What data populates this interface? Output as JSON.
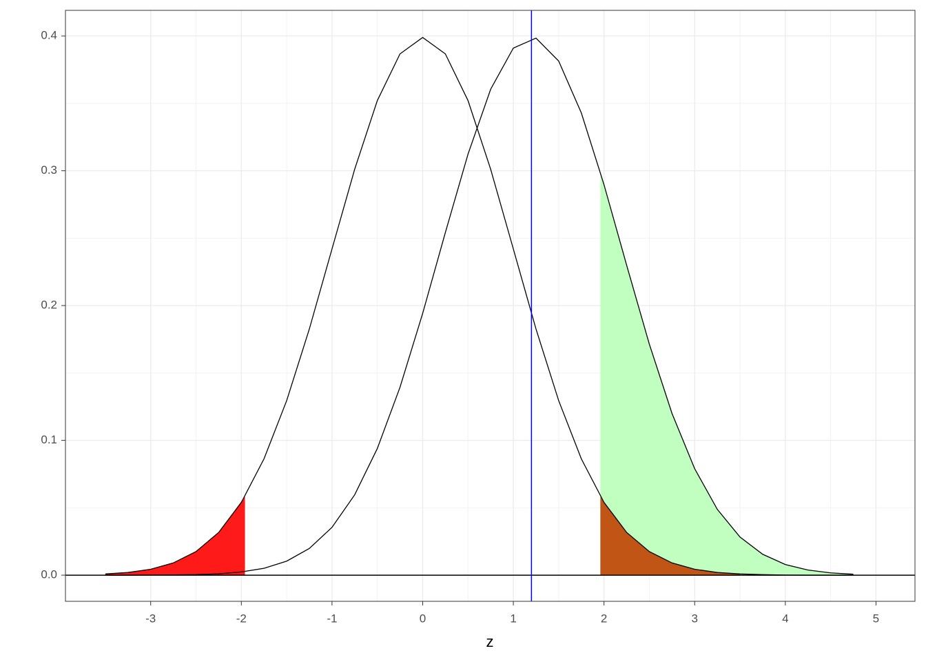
{
  "chart_data": {
    "type": "line",
    "xlabel": "z",
    "xlim": [
      -3.94,
      5.43
    ],
    "ylim": [
      -0.0194,
      0.419
    ],
    "xticks": [
      -3,
      -2,
      -1,
      0,
      1,
      2,
      3,
      4,
      5
    ],
    "yticks": [
      {
        "value": 0,
        "label": "0.0"
      },
      0.1,
      0.2,
      0.3,
      0.4
    ],
    "grid": true,
    "hline": 0,
    "vline": 1.2,
    "vline_color": "#0000ff",
    "series": [
      {
        "kind": "area",
        "color": "#c0ffc0",
        "x": [
          1.96,
          2,
          2.25,
          2.5,
          2.75,
          3,
          3.25,
          3.5,
          3.75,
          4,
          4.25,
          4.5,
          4.75
        ],
        "values": [
          0.2989,
          0.2897,
          0.2299,
          0.1714,
          0.12,
          0.079,
          0.0488,
          0.0283,
          0.0155,
          0.0079,
          0.0038,
          0.0017,
          0.0007
        ]
      },
      {
        "kind": "area",
        "color": "#c05515",
        "x": [
          1.96,
          2,
          2.25,
          2.5,
          2.75,
          3,
          3.25,
          3.5
        ],
        "values": [
          0.0584,
          0.054,
          0.0317,
          0.0175,
          0.0091,
          0.0044,
          0.002,
          0.0009
        ]
      },
      {
        "kind": "area",
        "color": "#ff1a1a",
        "x": [
          -3.5,
          -3.25,
          -3,
          -2.75,
          -2.5,
          -2.25,
          -1.96
        ],
        "values": [
          0.0009,
          0.002,
          0.0044,
          0.0091,
          0.0175,
          0.0317,
          0.0584
        ]
      },
      {
        "kind": "line",
        "color": "#000000",
        "x": [
          -3.5,
          -3.25,
          -3,
          -2.75,
          -2.5,
          -2.25,
          -2,
          -1.75,
          -1.5,
          -1.25,
          -1,
          -0.75,
          -0.5,
          -0.25,
          0,
          0.25,
          0.5,
          0.75,
          1,
          1.25,
          1.5,
          1.75,
          2,
          2.25,
          2.5,
          2.75,
          3,
          3.25,
          3.5,
          3.75,
          4,
          4.25,
          4.5,
          4.75
        ],
        "values": [
          0.0009,
          0.002,
          0.0044,
          0.0091,
          0.0175,
          0.0317,
          0.054,
          0.0863,
          0.1295,
          0.1826,
          0.242,
          0.3011,
          0.3521,
          0.3867,
          0.3989,
          0.3867,
          0.3521,
          0.3011,
          0.242,
          0.1826,
          0.1295,
          0.0863,
          0.054,
          0.0317,
          0.0175,
          0.0091,
          0.0044,
          0.002,
          0.0009,
          0.0004,
          0.0001,
          0.0,
          0.0,
          0.0
        ]
      },
      {
        "kind": "line",
        "color": "#000000",
        "x": [
          -3.5,
          -3.25,
          -3,
          -2.75,
          -2.5,
          -2.25,
          -2,
          -1.75,
          -1.5,
          -1.25,
          -1,
          -0.75,
          -0.5,
          -0.25,
          0,
          0.25,
          0.5,
          0.75,
          1,
          1.25,
          1.5,
          1.75,
          2,
          2.25,
          2.5,
          2.75,
          3,
          3.25,
          3.5,
          3.75,
          4,
          4.25,
          4.5,
          4.75
        ],
        "values": [
          0.0,
          0.0,
          0.0001,
          0.0002,
          0.0004,
          0.001,
          0.0024,
          0.0051,
          0.0104,
          0.0198,
          0.0355,
          0.0596,
          0.094,
          0.1394,
          0.1942,
          0.2541,
          0.3123,
          0.3605,
          0.391,
          0.3984,
          0.3814,
          0.3429,
          0.2897,
          0.2299,
          0.1714,
          0.12,
          0.079,
          0.0488,
          0.0283,
          0.0155,
          0.0079,
          0.0038,
          0.0017,
          0.0007
        ]
      }
    ]
  }
}
